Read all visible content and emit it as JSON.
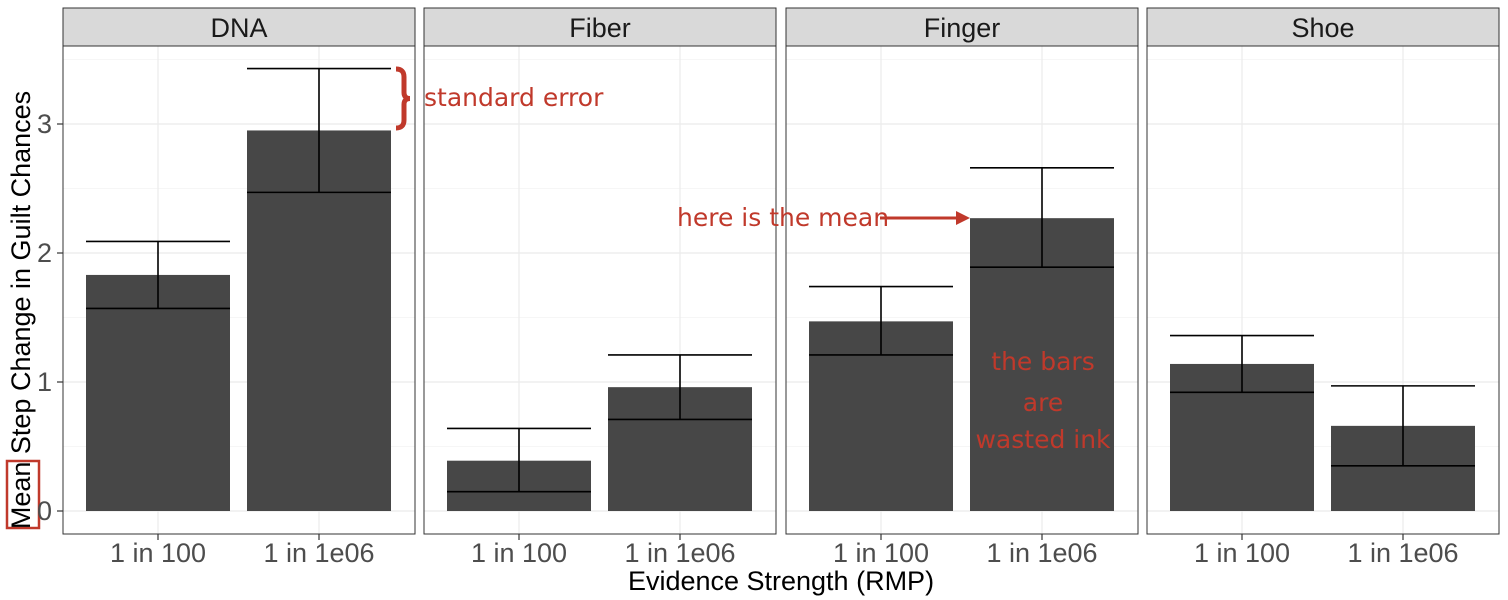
{
  "chart_data": {
    "type": "bar",
    "xlabel": "Evidence Strength (RMP)",
    "ylabel_prefix": "Mean",
    "ylabel_rest": " Step Change in Guilt Chances",
    "ylim": [
      0,
      3.6
    ],
    "y_ticks": [
      0,
      1,
      2,
      3
    ],
    "categories": [
      "1 in 100",
      "1 in 1e06"
    ],
    "grid": true,
    "panels": [
      {
        "name": "DNA",
        "values": [
          1.83,
          2.95
        ],
        "se_low": [
          1.57,
          2.47
        ],
        "se_high": [
          2.09,
          3.43
        ]
      },
      {
        "name": "Fiber",
        "values": [
          0.39,
          0.96
        ],
        "se_low": [
          0.15,
          0.71
        ],
        "se_high": [
          0.64,
          1.21
        ]
      },
      {
        "name": "Finger",
        "values": [
          1.47,
          2.27
        ],
        "se_low": [
          1.21,
          1.89
        ],
        "se_high": [
          1.74,
          2.66
        ]
      },
      {
        "name": "Shoe",
        "values": [
          1.14,
          0.66
        ],
        "se_low": [
          0.92,
          0.35
        ],
        "se_high": [
          1.36,
          0.97
        ]
      }
    ],
    "annotations": {
      "standard_error": "standard error",
      "mean": "here is the mean",
      "wasted_ink": [
        "the bars",
        "are",
        "wasted ink"
      ]
    },
    "colors": {
      "bar": "#474747",
      "annotation": "#c0392b",
      "strip": "#d9d9d9"
    }
  }
}
